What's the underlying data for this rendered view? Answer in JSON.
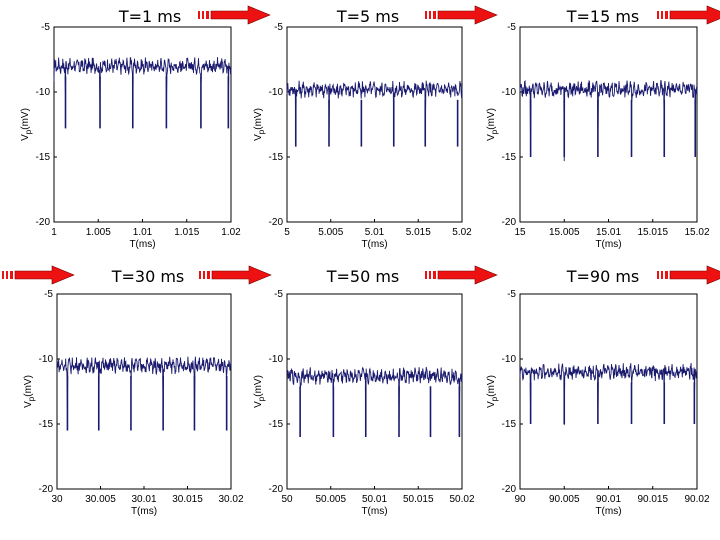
{
  "figure": {
    "arrow_color": "#ee1111",
    "trace_color": "#1a1a6e"
  },
  "chart_data": [
    {
      "type": "line",
      "title": "T=1 ms",
      "xlabel": "T(ms)",
      "ylabel_base": "V",
      "ylabel_sub": "p",
      "ylabel_unit": "(mV)",
      "xlim": [
        1,
        1.02
      ],
      "ylim": [
        -20,
        -5
      ],
      "xticks": [
        "1",
        "1.005",
        "1.01",
        "1.015",
        "1.02"
      ],
      "yticks": [
        "-5",
        "-10",
        "-15",
        "-20"
      ],
      "baseline": -8.0,
      "spike_min": -12.8,
      "spike_times": [
        1.0013,
        1.0052,
        1.0089,
        1.0127,
        1.0166,
        1.0197
      ]
    },
    {
      "type": "line",
      "title": "T=5 ms",
      "xlabel": "T(ms)",
      "ylabel_base": "V",
      "ylabel_sub": "p",
      "ylabel_unit": "(mV)",
      "xlim": [
        5,
        5.02
      ],
      "ylim": [
        -20,
        -5
      ],
      "xticks": [
        "5",
        "5.005",
        "5.01",
        "5.015",
        "5.02"
      ],
      "yticks": [
        "-5",
        "-10",
        "-15",
        "-20"
      ],
      "baseline": -9.8,
      "spike_min": -14.2,
      "spike_times": [
        5.001,
        5.0048,
        5.0085,
        5.0122,
        5.0158,
        5.0195
      ]
    },
    {
      "type": "line",
      "title": "T=15 ms",
      "xlabel": "T(ms)",
      "ylabel_base": "V",
      "ylabel_sub": "p",
      "ylabel_unit": "(mV)",
      "xlim": [
        15,
        15.02
      ],
      "ylim": [
        -20,
        -5
      ],
      "xticks": [
        "15",
        "15.005",
        "15.01",
        "15.015",
        "15.02"
      ],
      "yticks": [
        "-5",
        "-10",
        "-15",
        "-20"
      ],
      "baseline": -9.8,
      "spike_min": -15.0,
      "spike_times": [
        15.0012,
        15.005,
        15.0088,
        15.0126,
        15.0163,
        15.0198
      ]
    },
    {
      "type": "line",
      "title": "T=30 ms",
      "xlabel": "T(ms)",
      "ylabel_base": "V",
      "ylabel_sub": "p",
      "ylabel_unit": "(mV)",
      "xlim": [
        30,
        30.02
      ],
      "ylim": [
        -20,
        -5
      ],
      "xticks": [
        "30",
        "30.005",
        "30.01",
        "30.015",
        "30.02"
      ],
      "yticks": [
        "-5",
        "-10",
        "-15",
        "-20"
      ],
      "baseline": -10.5,
      "spike_min": -15.5,
      "spike_times": [
        30.0012,
        30.0048,
        30.0085,
        30.0122,
        30.0158,
        30.0195
      ]
    },
    {
      "type": "line",
      "title": "T=50 ms",
      "xlabel": "T(ms)",
      "ylabel_base": "V",
      "ylabel_sub": "p",
      "ylabel_unit": "(mV)",
      "xlim": [
        50,
        50.02
      ],
      "ylim": [
        -20,
        -5
      ],
      "xticks": [
        "50",
        "50.005",
        "50.01",
        "50.015",
        "50.02"
      ],
      "yticks": [
        "-5",
        "-10",
        "-15",
        "-20"
      ],
      "baseline": -11.3,
      "spike_min": -16.0,
      "spike_times": [
        50.0015,
        50.0053,
        50.009,
        50.0128,
        50.0164,
        50.0197
      ]
    },
    {
      "type": "line",
      "title": "T=90 ms",
      "xlabel": "T(ms)",
      "ylabel_base": "V",
      "ylabel_sub": "p",
      "ylabel_unit": "(mV)",
      "xlim": [
        90,
        90.02
      ],
      "ylim": [
        -20,
        -5
      ],
      "xticks": [
        "90",
        "90.005",
        "90.01",
        "90.015",
        "90.02"
      ],
      "yticks": [
        "-5",
        "-10",
        "-15",
        "-20"
      ],
      "baseline": -11.0,
      "spike_min": -15.0,
      "spike_times": [
        90.0012,
        90.005,
        90.0088,
        90.0126,
        90.0163,
        90.0197
      ]
    }
  ]
}
